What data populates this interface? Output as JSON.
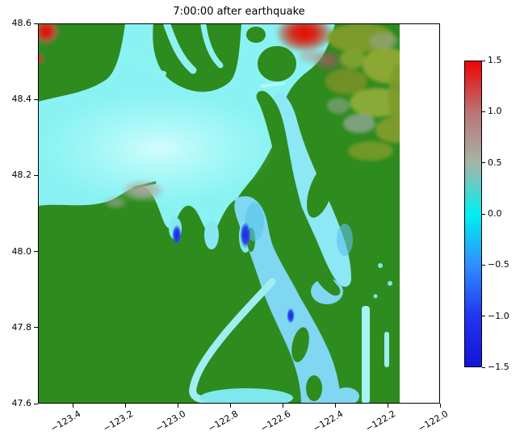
{
  "chart_data": {
    "type": "heatmap",
    "title": "7:00:00 after earthquake",
    "x_axis": {
      "label": "",
      "ticks": [
        "−123.4",
        "−123.2",
        "−123.0",
        "−122.8",
        "−122.6",
        "−122.4",
        "−122.2",
        "−122.0"
      ],
      "range": [
        -123.53,
        -122.0
      ],
      "tick_rotation_deg": 30
    },
    "y_axis": {
      "label": "",
      "ticks": [
        "48.6",
        "48.4",
        "48.2",
        "48.0",
        "47.8",
        "47.6"
      ],
      "range": [
        47.6,
        48.6
      ]
    },
    "colorbar": {
      "range": [
        -1.5,
        1.5
      ],
      "ticks": [
        "1.5",
        "1.0",
        "0.5",
        "0.0",
        "−0.5",
        "−1.0",
        "−1.5"
      ],
      "stops": [
        {
          "value": 1.5,
          "color": "#ee0404"
        },
        {
          "value": 1.0,
          "color": "#ba7474"
        },
        {
          "value": 0.5,
          "color": "#a6b4a8"
        },
        {
          "value": 0.0,
          "color": "#00f0f0"
        },
        {
          "value": -0.5,
          "color": "#2f8fff"
        },
        {
          "value": -1.0,
          "color": "#2236f0"
        },
        {
          "value": -1.5,
          "color": "#1414d8"
        }
      ]
    },
    "land_color": "#2e8b1e",
    "water_color_near_zero": "#8af2f2",
    "description": "Simulated tsunami surface elevation over the Puget Sound / Salish Sea region 7 hours after an earthquake; land shown in green, water colored by wave amplitude according to the colorbar.",
    "observed_features": [
      {
        "location": "top-left corner near lat 48.6, lon −123.5",
        "value": "≈ +1.5 (red hotspot)"
      },
      {
        "location": "north edge near lon −122.6 to −122.4, lat 48.6",
        "value": "≈ +1.0 to +1.5 (red/rosy patch)"
      },
      {
        "location": "small bays near lon −123.0 and −122.75, lat 48.05",
        "value": "≈ −1.0 to −1.5 (dark blue spots)"
      },
      {
        "location": "small spot near lon −122.6, lat 47.85",
        "value": "≈ −1.0 (dark blue)"
      },
      {
        "location": "Strait of Juan de Fuca and central sound",
        "value": "≈ 0 (cyan)"
      },
      {
        "location": "patch in strait near lon −123.1, lat 48.17",
        "value": "≈ +0.5 (gray)"
      },
      {
        "location": "upper-right land area",
        "value": "olive/gray mottled terrain"
      },
      {
        "location": "raster data ends near lon −122.15; axes extend to −122.0 (white strip)",
        "value": "no data"
      }
    ]
  }
}
